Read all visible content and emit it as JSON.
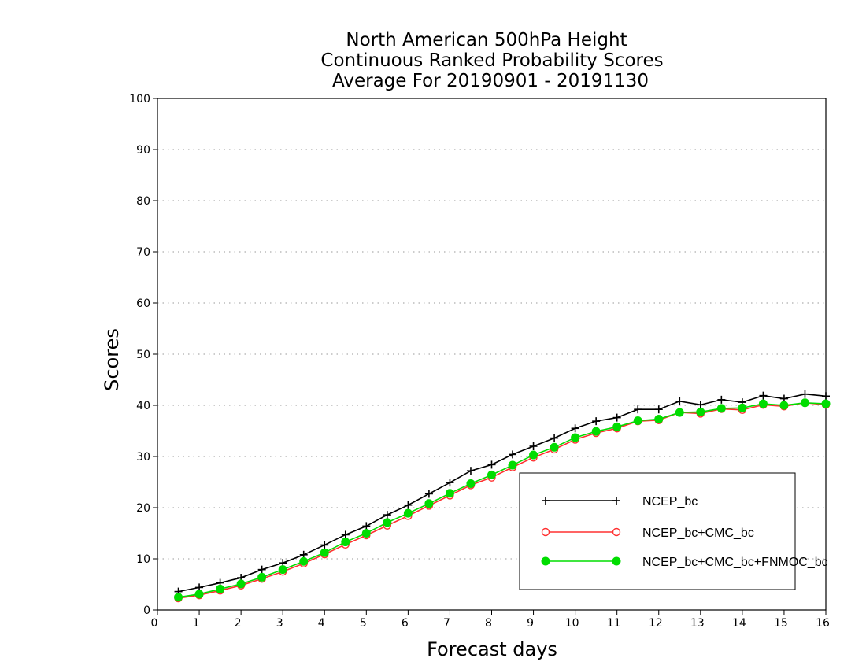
{
  "chart_data": {
    "type": "line",
    "title": [
      "North American 500hPa Height",
      "Continuous Ranked Probability Scores",
      "Average For 20190901 - 20191130"
    ],
    "xlabel": "Forecast days",
    "ylabel": "Scores",
    "xlim": [
      0,
      16
    ],
    "ylim": [
      0,
      100
    ],
    "x_ticks": [
      0,
      1,
      2,
      3,
      4,
      5,
      6,
      7,
      8,
      9,
      10,
      11,
      12,
      13,
      14,
      15,
      16
    ],
    "y_ticks": [
      0,
      10,
      20,
      30,
      40,
      50,
      60,
      70,
      80,
      90,
      100
    ],
    "grid": "horizontal dotted",
    "legend_position": "bottom-right",
    "x": [
      0.5,
      1.0,
      1.5,
      2.0,
      2.5,
      3.0,
      3.5,
      4.0,
      4.5,
      5.0,
      5.5,
      6.0,
      6.5,
      7.0,
      7.5,
      8.0,
      8.5,
      9.0,
      9.5,
      10.0,
      10.5,
      11.0,
      11.5,
      12.0,
      12.5,
      13.0,
      13.5,
      14.0,
      14.5,
      15.0,
      15.5,
      16.0
    ],
    "series": [
      {
        "name": "NCEP_bc",
        "color": "#000000",
        "marker": "plus",
        "values": [
          3.6,
          4.4,
          5.3,
          6.3,
          7.9,
          9.2,
          10.8,
          12.7,
          14.7,
          16.4,
          18.6,
          20.5,
          22.7,
          24.9,
          27.2,
          28.4,
          30.4,
          32.0,
          33.6,
          35.5,
          36.9,
          37.6,
          39.2,
          39.2,
          40.8,
          40.1,
          41.1,
          40.6,
          41.9,
          41.3,
          42.2,
          41.8
        ]
      },
      {
        "name": "NCEP_bc+CMC_bc",
        "color": "#ff3030",
        "marker": "open-circle",
        "values": [
          2.3,
          2.9,
          3.8,
          4.8,
          6.1,
          7.5,
          9.1,
          10.9,
          12.8,
          14.6,
          16.5,
          18.4,
          20.4,
          22.4,
          24.4,
          25.9,
          27.9,
          29.8,
          31.4,
          33.3,
          34.6,
          35.5,
          36.9,
          37.1,
          38.6,
          38.4,
          39.3,
          39.1,
          40.1,
          39.8,
          40.5,
          40.1
        ]
      },
      {
        "name": "NCEP_bc+CMC_bc+FNMOC_bc",
        "color": "#00dd00",
        "marker": "filled-circle",
        "values": [
          2.5,
          3.1,
          4.1,
          5.1,
          6.4,
          7.9,
          9.5,
          11.2,
          13.3,
          15.0,
          17.1,
          18.9,
          20.8,
          22.8,
          24.7,
          26.4,
          28.3,
          30.3,
          31.8,
          33.7,
          34.9,
          35.8,
          37.0,
          37.3,
          38.6,
          38.7,
          39.4,
          39.5,
          40.3,
          40.0,
          40.5,
          40.3
        ]
      }
    ]
  }
}
